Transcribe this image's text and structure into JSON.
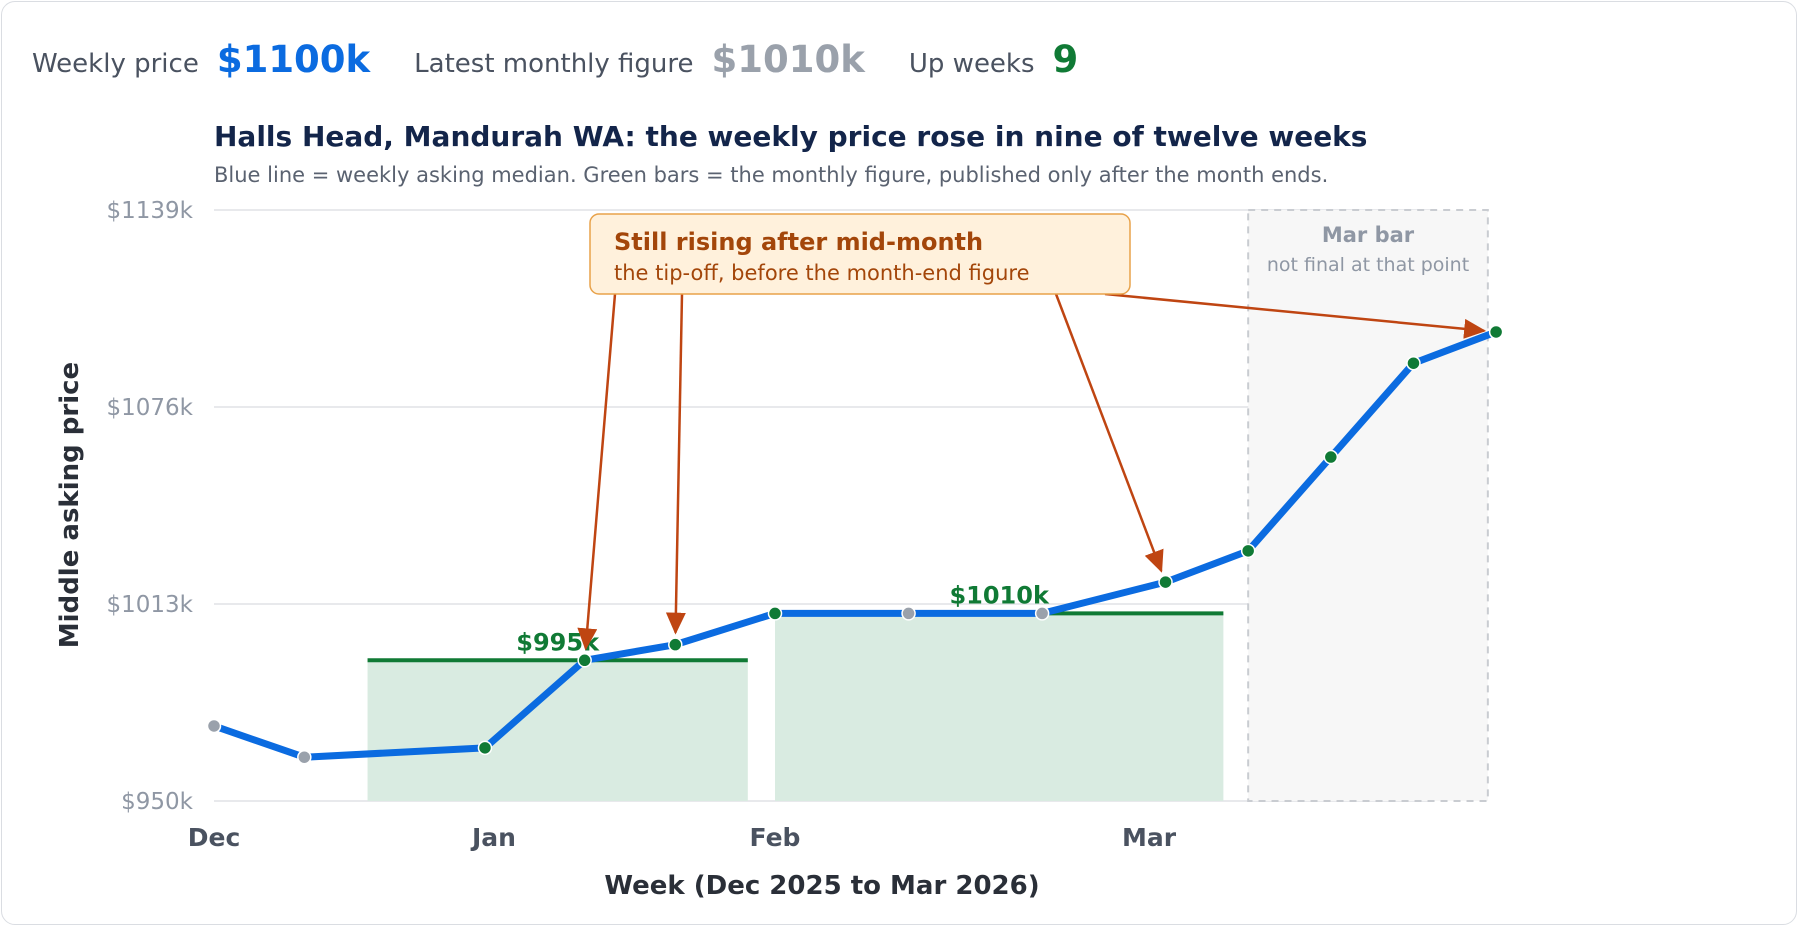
{
  "kpis": [
    {
      "label": "Weekly price",
      "value": "$1100k",
      "color": "#0b6be0"
    },
    {
      "label": "Latest monthly figure",
      "value": "$1010k",
      "color": "#9aa1ab"
    },
    {
      "label": "Up weeks",
      "value": "9",
      "color": "#107a35"
    }
  ],
  "colors": {
    "line": "#0b6be0",
    "bar_fill": "#d9ebe1",
    "bar_line": "#107a35",
    "up_point": "#107a35",
    "flat_point": "#9aa1ab",
    "annotation_text": "#a3460a",
    "annotation_fill": "#fff1dc",
    "annotation_border": "#e8a24a",
    "arrow": "#bf4512",
    "shade_fill": "#f7f7f7",
    "title": "#13254a"
  },
  "chart_data": {
    "type": "line",
    "title": "Halls Head, Mandurah WA: the weekly price rose in nine of twelve weeks",
    "subtitle": "Blue line = weekly asking median. Green bars = the monthly figure, published only after the month ends.",
    "xlabel": "Week (Dec 2025 to Mar 2026)",
    "ylabel": "Middle asking price",
    "ylim": [
      950,
      1139
    ],
    "yticks": [
      950,
      1013,
      1076,
      1139
    ],
    "ytick_labels": [
      "$950k",
      "$1013k",
      "$1076k",
      "$1139k"
    ],
    "xlim": [
      "2025-12-01",
      "2026-03-31"
    ],
    "xticks": [
      {
        "date": "2025-12-01",
        "label": "Dec"
      },
      {
        "date": "2026-01-01",
        "label": "Jan"
      },
      {
        "date": "2026-02-01",
        "label": "Feb"
      },
      {
        "date": "2026-03-01",
        "label": "Mar"
      }
    ],
    "grid": true,
    "series": [
      {
        "points": [
          {
            "date": "2025-12-01",
            "value": 974,
            "status": "flat"
          },
          {
            "date": "2025-12-11",
            "value": 964,
            "status": "flat"
          },
          {
            "date": "2025-12-31",
            "value": 967,
            "status": "up"
          },
          {
            "date": "2026-01-11",
            "value": 995,
            "status": "up"
          },
          {
            "date": "2026-01-21",
            "value": 1000,
            "status": "up"
          },
          {
            "date": "2026-02-01",
            "value": 1010,
            "status": "up"
          },
          {
            "date": "2026-02-11",
            "value": 1010,
            "status": "flat"
          },
          {
            "date": "2026-02-21",
            "value": 1010,
            "status": "flat"
          },
          {
            "date": "2026-03-03",
            "value": 1020,
            "status": "up"
          },
          {
            "date": "2026-03-13",
            "value": 1030,
            "status": "up"
          },
          {
            "date": "2026-03-23",
            "value": 1060,
            "status": "up"
          },
          {
            "date": "2026-04-02",
            "value": 1090,
            "status": "up"
          },
          {
            "date": "2026-04-12",
            "value": 1100,
            "status": "up"
          }
        ]
      }
    ],
    "monthly_bars": [
      {
        "start": "2025-12-18",
        "end": "2026-01-29",
        "value": 995,
        "label": "$995k"
      },
      {
        "start": "2026-02-01",
        "end": "2026-03-10",
        "value": 1010,
        "label": "$1010k"
      }
    ],
    "pending_region": {
      "start": "2026-03-13",
      "end": "2026-04-11",
      "title": "Mar bar",
      "subtitle": "not final at that point"
    },
    "annotation": {
      "title": "Still rising after mid-month",
      "subtitle": "the tip-off, before the month-end figure",
      "targets": [
        "2026-01-11",
        "2026-01-21",
        "2026-03-03",
        "2026-04-12"
      ]
    }
  }
}
